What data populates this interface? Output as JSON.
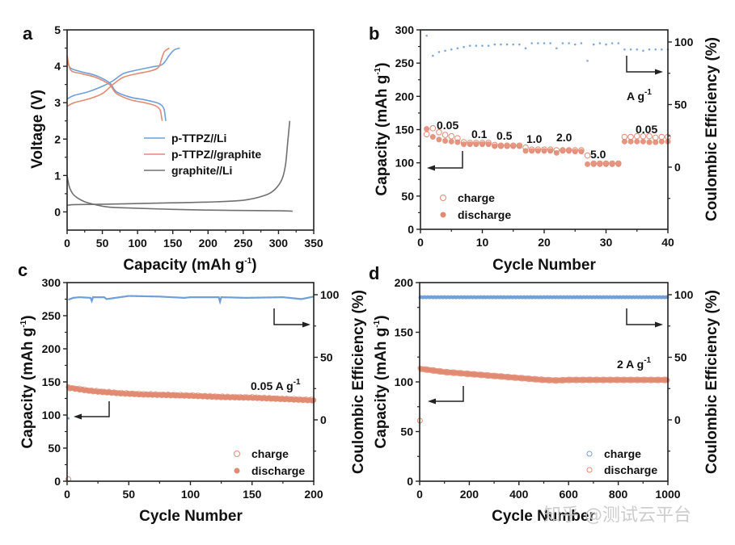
{
  "colors": {
    "blue": "#6f9fd8",
    "orange": "#e28a72",
    "gray": "#707070",
    "ce_dot": "#7fa9d9",
    "dark": "#222222"
  },
  "watermark": "知乎 @测试云平台",
  "chart_data": [
    {
      "panel": "a",
      "type": "line",
      "xlabel": "Capacity (mAh g-1)",
      "xlabel_main": "Capacity (mAh g",
      "xlabel_sup": "-1",
      "xlabel_end": ")",
      "ylabel": "Voltage (V)",
      "xlim": [
        0,
        350
      ],
      "ylim": [
        -0.5,
        5
      ],
      "xticks": [
        0,
        50,
        100,
        150,
        200,
        250,
        300,
        350
      ],
      "yticks": [
        0,
        1,
        2,
        3,
        4,
        5
      ],
      "legend_position": "center-right",
      "series": [
        {
          "name": "p-TTPZ//Li",
          "color_key": "blue",
          "charge": {
            "x": [
              0,
              10,
              30,
              50,
              65,
              80,
              100,
              120,
              135,
              145,
              152,
              160
            ],
            "y": [
              3.1,
              3.2,
              3.3,
              3.45,
              3.6,
              3.8,
              3.9,
              3.98,
              4.05,
              4.3,
              4.45,
              4.5
            ]
          },
          "discharge": {
            "x": [
              0,
              5,
              20,
              40,
              60,
              70,
              90,
              110,
              130,
              137,
              139,
              140
            ],
            "y": [
              4.15,
              3.95,
              3.85,
              3.75,
              3.55,
              3.3,
              3.15,
              3.08,
              2.98,
              2.85,
              2.65,
              2.5
            ]
          }
        },
        {
          "name": "p-TTPZ//graphite",
          "color_key": "orange",
          "charge": {
            "x": [
              0,
              10,
              30,
              50,
              65,
              80,
              100,
              120,
              130,
              134,
              138,
              145
            ],
            "y": [
              2.9,
              3.0,
              3.1,
              3.25,
              3.5,
              3.7,
              3.8,
              3.88,
              3.98,
              4.2,
              4.4,
              4.5
            ]
          },
          "discharge": {
            "x": [
              0,
              5,
              20,
              40,
              60,
              70,
              90,
              110,
              125,
              132,
              134,
              135
            ],
            "y": [
              4.3,
              3.9,
              3.8,
              3.7,
              3.5,
              3.25,
              3.08,
              3.0,
              2.92,
              2.8,
              2.6,
              2.5
            ]
          }
        },
        {
          "name": "graphite//Li",
          "color_key": "gray",
          "lithiation": {
            "x": [
              0,
              3,
              8,
              15,
              25,
              40,
              60,
              100,
              150,
              200,
              250,
              300,
              320
            ],
            "y": [
              1.0,
              0.7,
              0.5,
              0.38,
              0.28,
              0.2,
              0.13,
              0.1,
              0.07,
              0.05,
              0.04,
              0.03,
              0.02
            ]
          },
          "delithiation": {
            "x": [
              0,
              10,
              50,
              100,
              150,
              200,
              250,
              280,
              295,
              305,
              310,
              313,
              316
            ],
            "y": [
              0.18,
              0.2,
              0.21,
              0.23,
              0.25,
              0.27,
              0.32,
              0.45,
              0.62,
              0.9,
              1.3,
              1.9,
              2.5
            ]
          }
        }
      ]
    },
    {
      "panel": "b",
      "type": "scatter",
      "xlabel": "Cycle Number",
      "ylabel": "Capacity (mAh g-1)",
      "ylabel_main": "Capacity (mAh g",
      "ylabel_sup": "-1",
      "ylabel_end": ")",
      "y2label": "Coulombic Efficiency (%)",
      "xlim": [
        0,
        40
      ],
      "ylim": [
        0,
        300
      ],
      "y2lim": [
        -25,
        110
      ],
      "xticks": [
        0,
        10,
        20,
        30,
        40
      ],
      "yticks": [
        0,
        50,
        100,
        150,
        200,
        250,
        300
      ],
      "y2ticks": [
        0,
        50,
        100
      ],
      "legend_position": "bottom-left",
      "rate_labels": [
        "0.05",
        "0.1",
        "0.5",
        "1.0",
        "2.0",
        "5.0",
        "0.05"
      ],
      "rate_unit": "A g-1",
      "rate_unit_main": "A g",
      "rate_unit_sup": "-1",
      "series": [
        {
          "name": "charge",
          "marker": "open-circle",
          "color_key": "orange",
          "x": [
            1,
            2,
            3,
            4,
            5,
            6,
            7,
            8,
            9,
            10,
            11,
            12,
            13,
            14,
            15,
            16,
            17,
            18,
            19,
            20,
            21,
            22,
            23,
            24,
            25,
            26,
            27,
            28,
            29,
            30,
            31,
            32,
            33,
            34,
            35,
            36,
            37,
            38,
            39,
            40
          ],
          "values": [
            143,
            152,
            146,
            142,
            140,
            137,
            131,
            130,
            130,
            130,
            130,
            127,
            126,
            126,
            126,
            126,
            123,
            120,
            120,
            120,
            120,
            119,
            119,
            119,
            119,
            119,
            111,
            99,
            99,
            99,
            99,
            99,
            139,
            139,
            140,
            140,
            140,
            138,
            139,
            139
          ]
        },
        {
          "name": "discharge",
          "marker": "filled-circle",
          "color_key": "orange",
          "x": [
            1,
            2,
            3,
            4,
            5,
            6,
            7,
            8,
            9,
            10,
            11,
            12,
            13,
            14,
            15,
            16,
            17,
            18,
            19,
            20,
            21,
            22,
            23,
            24,
            25,
            26,
            27,
            28,
            29,
            30,
            31,
            32,
            33,
            34,
            35,
            36,
            37,
            38,
            39,
            40
          ],
          "values": [
            151,
            139,
            135,
            133,
            132,
            131,
            128,
            128,
            128,
            128,
            128,
            125,
            125,
            125,
            125,
            125,
            118,
            118,
            118,
            118,
            118,
            115,
            118,
            118,
            117,
            117,
            98,
            98,
            98,
            98,
            98,
            98,
            132,
            132,
            132,
            132,
            131,
            131,
            132,
            132
          ]
        },
        {
          "name": "coulombic efficiency",
          "marker": "small-dot",
          "color_key": "ce_dot",
          "axis": "right",
          "x": [
            1,
            2,
            3,
            4,
            5,
            6,
            7,
            8,
            9,
            10,
            11,
            12,
            13,
            14,
            15,
            16,
            17,
            18,
            19,
            20,
            21,
            22,
            23,
            24,
            25,
            26,
            27,
            28,
            29,
            30,
            31,
            32,
            33,
            34,
            35,
            36,
            37,
            38,
            39,
            40
          ],
          "values": [
            105,
            89,
            92,
            93,
            94,
            95,
            96,
            97,
            97,
            97,
            97,
            98,
            98,
            98,
            98,
            98,
            95,
            99,
            99,
            99,
            99,
            95,
            99,
            99,
            98,
            99,
            85,
            98,
            99,
            98,
            99,
            99,
            94,
            94,
            94,
            93,
            94,
            94,
            94,
            94
          ]
        }
      ]
    },
    {
      "panel": "c",
      "type": "scatter",
      "xlabel": "Cycle Number",
      "ylabel": "Capacity (mAh g-1)",
      "ylabel_main": "Capacity (mAh g",
      "ylabel_sup": "-1",
      "ylabel_end": ")",
      "y2label": "Coulombic Efficiency (%)",
      "xlim": [
        0,
        200
      ],
      "ylim": [
        0,
        300
      ],
      "y2lim": [
        -25,
        110
      ],
      "xticks": [
        0,
        50,
        100,
        150,
        200
      ],
      "yticks": [
        0,
        50,
        100,
        150,
        200,
        250,
        300
      ],
      "y2ticks": [
        0,
        50,
        100
      ],
      "legend_position": "bottom-right",
      "annotation_main": "0.05 A g",
      "annotation_sup": "-1",
      "annotation": "0.05 A g-1",
      "series": [
        {
          "name": "charge",
          "marker": "open-circle",
          "color_key": "orange",
          "x": [
            0,
            5,
            20,
            40,
            60,
            80,
            100,
            125,
            150,
            175,
            200
          ],
          "values": [
            140,
            141,
            137,
            134,
            132,
            131,
            130,
            128,
            127,
            125,
            123
          ]
        },
        {
          "name": "discharge",
          "marker": "filled-circle",
          "color_key": "orange",
          "x": [
            0,
            5,
            20,
            40,
            60,
            80,
            100,
            125,
            150,
            175,
            200
          ],
          "values": [
            142,
            140,
            136,
            133,
            131,
            130,
            129,
            127,
            126,
            124,
            122
          ]
        },
        {
          "name": "coulombic efficiency",
          "color_key": "blue",
          "axis": "right",
          "x": [
            1,
            5,
            10,
            19,
            20,
            21,
            30,
            32,
            50,
            75,
            95,
            100,
            123,
            124,
            125,
            145,
            175,
            190,
            200
          ],
          "values": [
            96,
            97.5,
            98,
            97.5,
            95,
            98,
            98,
            96.5,
            99,
            98.5,
            97.5,
            98,
            98,
            94.5,
            98,
            97.5,
            98,
            96.5,
            98.5
          ]
        }
      ]
    },
    {
      "panel": "d",
      "type": "scatter",
      "xlabel": "Cycle Number",
      "ylabel": "Capacity (mAh g-1)",
      "ylabel_main": "Capacity (mAh g",
      "ylabel_sup": "-1",
      "ylabel_end": ")",
      "y2label": "Coulombic Efficiency (%)",
      "xlim": [
        0,
        1000
      ],
      "ylim": [
        0,
        200
      ],
      "y2lim": [
        -25,
        110
      ],
      "xticks": [
        0,
        200,
        400,
        600,
        800,
        1000
      ],
      "yticks": [
        0,
        50,
        100,
        150,
        200
      ],
      "y2ticks": [
        0,
        50,
        100
      ],
      "legend_position": "bottom-right",
      "annotation_main": "2 A g",
      "annotation_sup": "-1",
      "annotation": "2 A g-1",
      "series": [
        {
          "name": "charge",
          "marker": "open-circle",
          "color_key": "blue",
          "x": [
            0,
            1000
          ],
          "values": [
            98,
            98
          ],
          "axis": "right"
        },
        {
          "name": "discharge",
          "marker": "open-circle",
          "color_key": "orange",
          "x": [
            0,
            10,
            100,
            200,
            300,
            400,
            500,
            550,
            600,
            700,
            800,
            900,
            1000
          ],
          "values": [
            113,
            113,
            110,
            108,
            106,
            104,
            102,
            101.5,
            102,
            102,
            102,
            102,
            102
          ],
          "first_cycle": 61
        }
      ]
    }
  ]
}
